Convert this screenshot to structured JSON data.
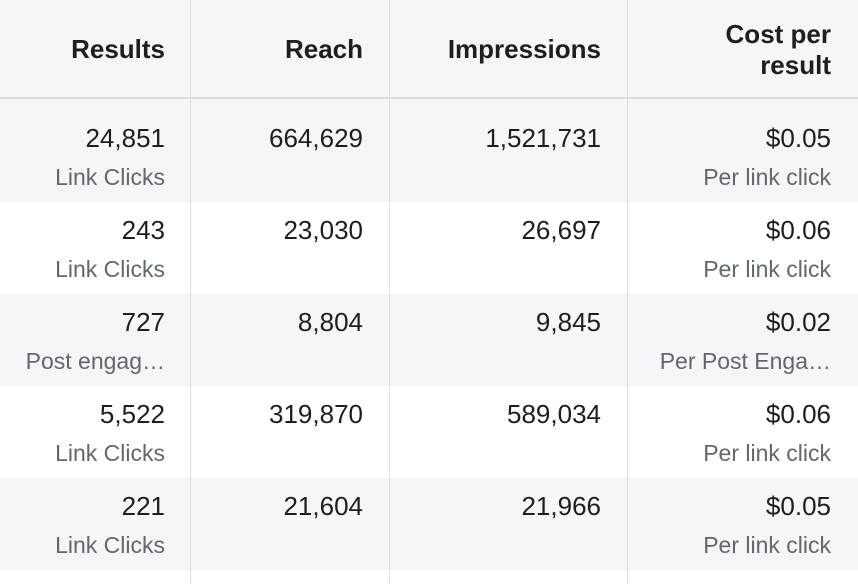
{
  "table": {
    "headers": [
      "Results",
      "Reach",
      "Impressions",
      "Cost per result"
    ],
    "rows": [
      {
        "results": "24,851",
        "results_type": "Link Clicks",
        "reach": "664,629",
        "impressions": "1,521,731",
        "cost": "$0.05",
        "cost_type": "Per link click"
      },
      {
        "results": "243",
        "results_type": "Link Clicks",
        "reach": "23,030",
        "impressions": "26,697",
        "cost": "$0.06",
        "cost_type": "Per link click"
      },
      {
        "results": "727",
        "results_type": "Post engag…",
        "reach": "8,804",
        "impressions": "9,845",
        "cost": "$0.02",
        "cost_type": "Per Post Enga…"
      },
      {
        "results": "5,522",
        "results_type": "Link Clicks",
        "reach": "319,870",
        "impressions": "589,034",
        "cost": "$0.06",
        "cost_type": "Per link click"
      },
      {
        "results": "221",
        "results_type": "Link Clicks",
        "reach": "21,604",
        "impressions": "21,966",
        "cost": "$0.05",
        "cost_type": "Per link click"
      }
    ]
  }
}
